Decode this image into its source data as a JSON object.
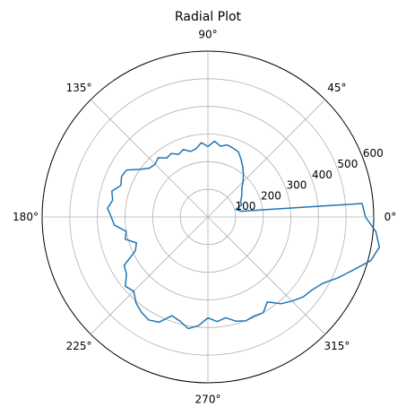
{
  "chart_data": {
    "type": "line",
    "projection": "polar",
    "title": "Radial Plot",
    "theta_unit": "deg",
    "r_range": [
      0,
      600
    ],
    "r_ticks": [
      100,
      200,
      300,
      400,
      500,
      600
    ],
    "r_tick_labels": [
      "100",
      "200",
      "300",
      "400",
      "500",
      "600"
    ],
    "theta_ticks": [
      0,
      45,
      90,
      135,
      180,
      225,
      270,
      315
    ],
    "theta_tick_labels": [
      "0°",
      "45°",
      "90°",
      "135°",
      "180°",
      "225°",
      "270°",
      "315°"
    ],
    "grid": true,
    "series": [
      {
        "color": "#1f77b4",
        "theta": [
          0,
          5,
          10,
          15,
          20,
          25,
          30,
          35,
          40,
          45,
          50,
          55,
          60,
          65,
          70,
          75,
          80,
          85,
          90,
          95,
          100,
          105,
          110,
          115,
          120,
          125,
          130,
          135,
          140,
          145,
          150,
          155,
          160,
          165,
          170,
          175,
          180,
          185,
          190,
          195,
          200,
          205,
          210,
          215,
          220,
          225,
          230,
          235,
          240,
          245,
          250,
          255,
          260,
          265,
          270,
          275,
          280,
          285,
          290,
          295,
          300,
          305,
          310,
          315,
          320,
          325,
          330,
          335,
          340,
          345,
          350,
          355,
          360
        ],
        "r": [
          570,
          560,
          120,
          105,
          130,
          130,
          140,
          150,
          160,
          180,
          200,
          220,
          240,
          260,
          265,
          270,
          260,
          275,
          255,
          270,
          250,
          245,
          260,
          250,
          265,
          260,
          280,
          270,
          275,
          300,
          340,
          345,
          335,
          360,
          350,
          365,
          350,
          340,
          300,
          310,
          275,
          290,
          350,
          360,
          390,
          380,
          405,
          420,
          430,
          420,
          380,
          390,
          410,
          395,
          365,
          380,
          370,
          390,
          400,
          395,
          400,
          375,
          410,
          430,
          450,
          460,
          480,
          520,
          560,
          610,
          630,
          610,
          570
        ]
      }
    ]
  }
}
